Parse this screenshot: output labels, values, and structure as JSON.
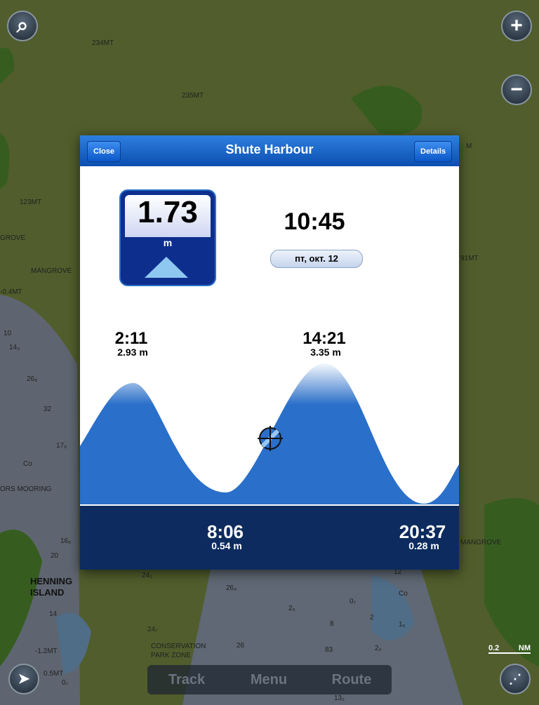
{
  "map": {
    "labels": [
      "234MT",
      "235MT",
      "123MT",
      "GROVE",
      "MANGROVE",
      "-0.4MT",
      "10",
      "14₃",
      "26₈",
      "32",
      "17₅",
      "Co",
      "ORS MOORING",
      "16₈",
      "20",
      "HENNING",
      "ISLAND",
      "14",
      "24₇",
      "CONSERVATION",
      "PARK ZONE",
      "26",
      "-1.2MT",
      "0.5MT",
      "0₇",
      "24₂",
      "26₄",
      "2₉",
      "0₇",
      "2",
      "83",
      "8",
      "1₅",
      "2₂",
      "13₂",
      "12",
      "Co",
      "MANGROVE",
      "91MT",
      "M"
    ],
    "scale": {
      "value": "0.2",
      "unit": "NM"
    }
  },
  "popup": {
    "close": "Close",
    "title": "Shute Harbour",
    "details": "Details",
    "current_height": "1.73",
    "unit": "m",
    "time": "10:45",
    "date": "пт, окт. 12",
    "extremes": [
      {
        "time": "2:11",
        "height": "2.93 m"
      },
      {
        "time": "14:21",
        "height": "3.35 m"
      },
      {
        "time": "8:06",
        "height": "0.54 m"
      },
      {
        "time": "20:37",
        "height": "0.28 m"
      }
    ]
  },
  "toolbar": {
    "track": "Track",
    "menu": "Menu",
    "route": "Route"
  }
}
